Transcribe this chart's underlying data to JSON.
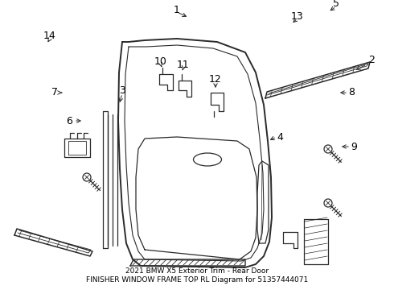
{
  "bg_color": "#ffffff",
  "line_color": "#2a2a2a",
  "label_color": "#000000",
  "title": "2021 BMW X5 Exterior Trim - Rear Door\nFINISHER WINDOW FRAME TOP RL Diagram for 51357444071",
  "title_fontsize": 6.5,
  "label_fontsize": 9,
  "fig_width": 4.9,
  "fig_height": 3.6,
  "dpi": 100
}
